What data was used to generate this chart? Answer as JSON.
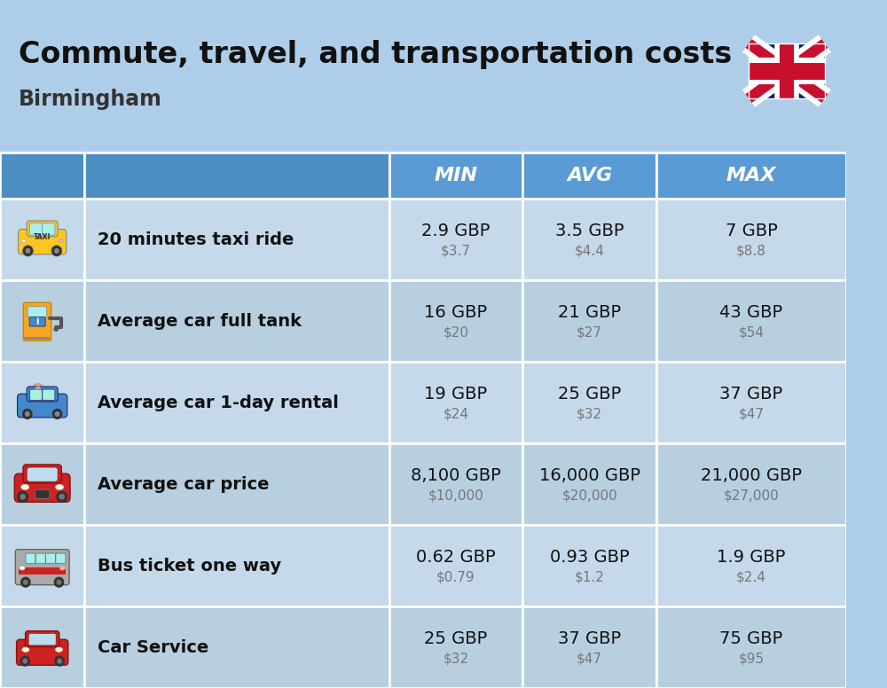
{
  "title": "Commute, travel, and transportation costs",
  "subtitle": "Birmingham",
  "header_bg": "#5b9bd5",
  "header_text_color": "#ffffff",
  "row_bg_even": "#c5d9ea",
  "row_bg_odd": "#b8cfe0",
  "title_bg": "#aecde8",
  "table_border_color": "#ffffff",
  "col_headers": [
    "MIN",
    "AVG",
    "MAX"
  ],
  "rows": [
    {
      "label": "20 minutes taxi ride",
      "values_gbp": [
        "2.9 GBP",
        "3.5 GBP",
        "7 GBP"
      ],
      "values_usd": [
        "$3.7",
        "$4.4",
        "$8.8"
      ]
    },
    {
      "label": "Average car full tank",
      "values_gbp": [
        "16 GBP",
        "21 GBP",
        "43 GBP"
      ],
      "values_usd": [
        "$20",
        "$27",
        "$54"
      ]
    },
    {
      "label": "Average car 1-day rental",
      "values_gbp": [
        "19 GBP",
        "25 GBP",
        "37 GBP"
      ],
      "values_usd": [
        "$24",
        "$32",
        "$47"
      ]
    },
    {
      "label": "Average car price",
      "values_gbp": [
        "8,100 GBP",
        "16,000 GBP",
        "21,000 GBP"
      ],
      "values_usd": [
        "$10,000",
        "$20,000",
        "$27,000"
      ]
    },
    {
      "label": "Bus ticket one way",
      "values_gbp": [
        "0.62 GBP",
        "0.93 GBP",
        "1.9 GBP"
      ],
      "values_usd": [
        "$0.79",
        "$1.2",
        "$2.4"
      ]
    },
    {
      "label": "Car Service",
      "values_gbp": [
        "25 GBP",
        "37 GBP",
        "75 GBP"
      ],
      "values_usd": [
        "$32",
        "$47",
        "$95"
      ]
    }
  ],
  "gbp_fontsize": 13,
  "usd_fontsize": 11,
  "label_fontsize": 13,
  "header_fontsize": 14
}
